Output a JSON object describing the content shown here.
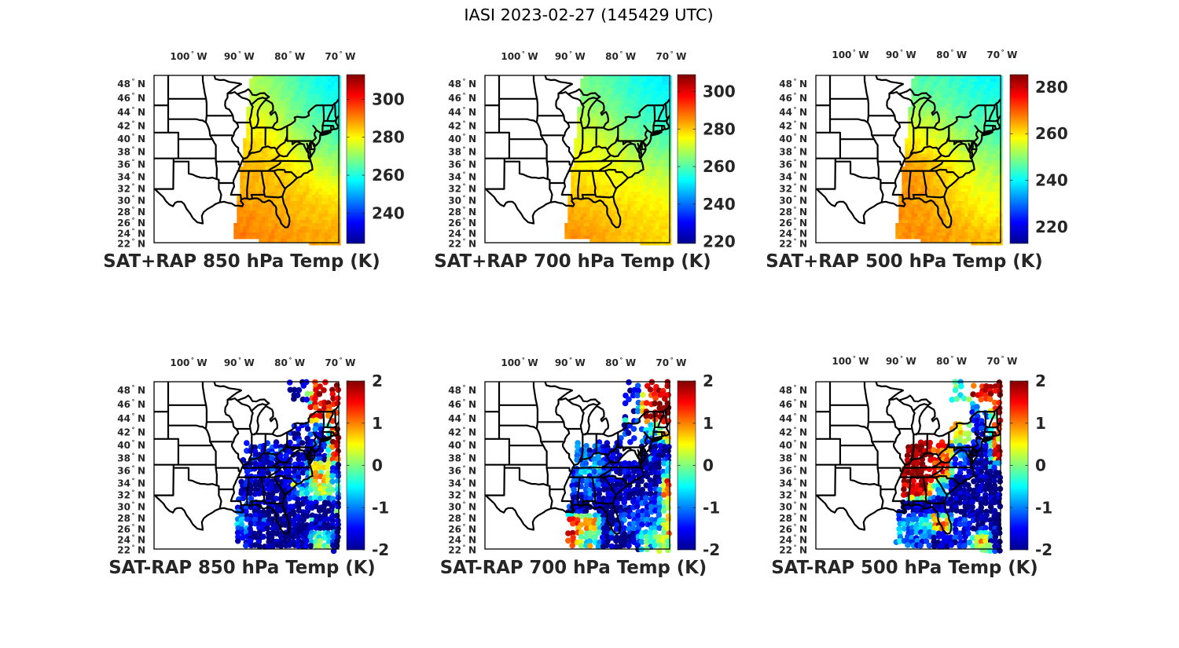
{
  "figure": {
    "title": "IASI 2023-02-27 (145429 UTC)"
  },
  "map_axes": {
    "lon_range": [
      -106.85,
      -70.3
    ],
    "lat_range": [
      22.6,
      49.2
    ],
    "lon_ticks": [
      -100,
      -90,
      -80,
      -70
    ],
    "lon_labels": [
      {
        "num": "100",
        "deg": "°",
        "hemi": "W"
      },
      {
        "num": "90",
        "deg": "°",
        "hemi": "W"
      },
      {
        "num": "80",
        "deg": "°",
        "hemi": "W"
      },
      {
        "num": "70",
        "deg": "°",
        "hemi": "W"
      }
    ],
    "lat_ticks": [
      48,
      46,
      44,
      42,
      40,
      38,
      36,
      34,
      32,
      30,
      28,
      26,
      24,
      22
    ],
    "lat_labels": [
      {
        "num": "48",
        "deg": "°",
        "hemi": "N"
      },
      {
        "num": "46",
        "deg": "°",
        "hemi": "N"
      },
      {
        "num": "44",
        "deg": "°",
        "hemi": "N"
      },
      {
        "num": "42",
        "deg": "°",
        "hemi": "N"
      },
      {
        "num": "40",
        "deg": "°",
        "hemi": "N"
      },
      {
        "num": "38",
        "deg": "°",
        "hemi": "N"
      },
      {
        "num": "36",
        "deg": "°",
        "hemi": "N"
      },
      {
        "num": "34",
        "deg": "°",
        "hemi": "N"
      },
      {
        "num": "32",
        "deg": "°",
        "hemi": "N"
      },
      {
        "num": "30",
        "deg": "°",
        "hemi": "N"
      },
      {
        "num": "28",
        "deg": "°",
        "hemi": "N"
      },
      {
        "num": "26",
        "deg": "°",
        "hemi": "N"
      },
      {
        "num": "24",
        "deg": "°",
        "hemi": "N"
      },
      {
        "num": "22",
        "deg": "°",
        "hemi": "N"
      }
    ]
  },
  "chart_data": [
    {
      "type": "heatmap",
      "title": "SAT+RAP 850 hPa Temp (K)",
      "colormap": "jet",
      "clim": [
        224,
        313
      ],
      "cbar_ticks": [
        240,
        260,
        280,
        300
      ],
      "cbar_tick_labels": [
        "240",
        "260",
        "280",
        "300"
      ],
      "swath_lonlat": [
        [
          -87.6,
          49.2
        ],
        [
          -70.1,
          49.2
        ],
        [
          -70.1,
          21.7
        ],
        [
          -91.1,
          23.0
        ]
      ],
      "grid": {
        "lats": [
          48,
          45,
          42,
          39,
          36,
          33,
          30,
          27,
          24
        ],
        "lons": [
          -90,
          -86,
          -82,
          -78,
          -74,
          -70
        ],
        "values": [
          [
            273,
            272,
            268,
            263,
            259,
            256
          ],
          [
            276,
            275,
            271,
            266,
            262,
            259
          ],
          [
            280,
            279,
            275,
            269,
            265,
            262
          ],
          [
            284,
            283,
            280,
            274,
            269,
            266
          ],
          [
            286,
            285,
            283,
            279,
            274,
            271
          ],
          [
            287,
            286,
            285,
            283,
            279,
            277
          ],
          [
            288,
            287,
            286,
            285,
            283,
            282
          ],
          [
            290,
            289,
            287,
            286,
            285,
            285
          ],
          [
            291,
            290,
            289,
            288,
            287,
            287
          ]
        ]
      }
    },
    {
      "type": "heatmap",
      "title": "SAT+RAP 700 hPa Temp (K)",
      "colormap": "jet",
      "clim": [
        219,
        309
      ],
      "cbar_ticks": [
        220,
        240,
        260,
        280,
        300
      ],
      "cbar_tick_labels": [
        "220",
        "240",
        "260",
        "280",
        "300"
      ],
      "swath_lonlat": [
        [
          -87.6,
          49.2
        ],
        [
          -70.1,
          49.2
        ],
        [
          -70.1,
          21.7
        ],
        [
          -91.1,
          23.0
        ]
      ],
      "grid": {
        "lats": [
          48,
          45,
          42,
          39,
          36,
          33,
          30,
          27,
          24
        ],
        "lons": [
          -90,
          -86,
          -82,
          -78,
          -74,
          -70
        ],
        "values": [
          [
            264,
            263,
            260,
            256,
            253,
            251
          ],
          [
            267,
            266,
            263,
            259,
            256,
            254
          ],
          [
            271,
            270,
            267,
            262,
            259,
            257
          ],
          [
            274,
            273,
            271,
            267,
            263,
            261
          ],
          [
            276,
            275,
            274,
            272,
            268,
            266
          ],
          [
            279,
            278,
            276,
            275,
            272,
            271
          ],
          [
            281,
            280,
            278,
            277,
            276,
            275
          ],
          [
            283,
            282,
            280,
            279,
            278,
            277
          ],
          [
            285,
            284,
            282,
            280,
            279,
            278
          ]
        ]
      }
    },
    {
      "type": "heatmap",
      "title": "SAT+RAP 500 hPa Temp (K)",
      "colormap": "jet",
      "clim": [
        213,
        285.3
      ],
      "cbar_ticks": [
        220,
        240,
        260,
        280
      ],
      "cbar_tick_labels": [
        "220",
        "240",
        "260",
        "280"
      ],
      "swath_lonlat": [
        [
          -87.6,
          49.2
        ],
        [
          -70.1,
          49.2
        ],
        [
          -70.1,
          21.7
        ],
        [
          -91.1,
          23.0
        ]
      ],
      "grid": {
        "lats": [
          48,
          45,
          42,
          39,
          36,
          33,
          30,
          27,
          24
        ],
        "lons": [
          -90,
          -86,
          -82,
          -78,
          -74,
          -70
        ],
        "values": [
          [
            247,
            246,
            245,
            243,
            241,
            240
          ],
          [
            251,
            250,
            248,
            246,
            244,
            243
          ],
          [
            256,
            255,
            253,
            249,
            246,
            245
          ],
          [
            261,
            259,
            257,
            253,
            249,
            247
          ],
          [
            265,
            264,
            261,
            257,
            253,
            251
          ],
          [
            266,
            265,
            262,
            259,
            256,
            254
          ],
          [
            266,
            265,
            263,
            260,
            258,
            257
          ],
          [
            266,
            265,
            264,
            262,
            260,
            259
          ],
          [
            266,
            266,
            265,
            264,
            263,
            262
          ]
        ]
      }
    },
    {
      "type": "scatter",
      "title": "SAT-RAP 850 hPa Temp (K)",
      "colormap": "jet",
      "clim": [
        -2,
        2
      ],
      "cbar_ticks": [
        -2,
        -1,
        0,
        1,
        2
      ],
      "cbar_tick_labels": [
        "-2",
        "-1",
        "0",
        "1",
        "2"
      ],
      "swath_lonlat": [
        [
          -87.6,
          49.2
        ],
        [
          -70.1,
          49.2
        ],
        [
          -70.1,
          21.7
        ],
        [
          -91.1,
          23.0
        ]
      ],
      "grid": {
        "lats": [
          48,
          45,
          42,
          39,
          36,
          33,
          30,
          27,
          24
        ],
        "lons": [
          -90,
          -86,
          -82,
          -78,
          -74,
          -70
        ],
        "values": [
          [
            null,
            null,
            null,
            -1.9,
            1.4,
            1.7
          ],
          [
            null,
            null,
            null,
            null,
            1.3,
            1.6
          ],
          [
            null,
            null,
            null,
            -1.7,
            -1.3,
            1.9
          ],
          [
            -1.7,
            -1.6,
            -1.5,
            -1.8,
            -1.4,
            1.9
          ],
          [
            -1.7,
            -1.8,
            -1.9,
            -1.6,
            0.9,
            -1.4
          ],
          [
            -1.5,
            -1.9,
            -1.9,
            -1.0,
            0.3,
            -0.6
          ],
          [
            -1.4,
            -1.8,
            -1.9,
            -2.0,
            -1.9,
            -1.8
          ],
          [
            -0.9,
            -1.6,
            -2.0,
            -2.0,
            -1.9,
            -1.9
          ],
          [
            -1.6,
            -2.0,
            -2.0,
            -1.9,
            0.0,
            -1.8
          ]
        ]
      }
    },
    {
      "type": "scatter",
      "title": "SAT-RAP 700 hPa Temp (K)",
      "colormap": "jet",
      "clim": [
        -2,
        2
      ],
      "cbar_ticks": [
        -2,
        -1,
        0,
        1,
        2
      ],
      "cbar_tick_labels": [
        "-2",
        "-1",
        "0",
        "1",
        "2"
      ],
      "swath_lonlat": [
        [
          -87.6,
          49.2
        ],
        [
          -70.1,
          49.2
        ],
        [
          -70.1,
          21.7
        ],
        [
          -91.1,
          23.0
        ]
      ],
      "grid": {
        "lats": [
          48,
          45,
          42,
          39,
          36,
          33,
          30,
          27,
          24
        ],
        "lons": [
          -90,
          -86,
          -82,
          -78,
          -74,
          -70
        ],
        "values": [
          [
            null,
            null,
            null,
            -1.7,
            1.5,
            1.8
          ],
          [
            null,
            null,
            null,
            -1.8,
            1.8,
            2.0
          ],
          [
            null,
            null,
            null,
            -1.5,
            -0.6,
            1.3
          ],
          [
            -1.2,
            -1.2,
            -1.6,
            null,
            -1.9,
            -1.7
          ],
          [
            -1.2,
            -0.8,
            -1.6,
            -1.8,
            -2.0,
            -0.5
          ],
          [
            -1.4,
            -1.3,
            -1.9,
            -2.0,
            -1.8,
            1.3
          ],
          [
            -1.8,
            -1.9,
            -2.0,
            -1.6,
            -1.3,
            0.3
          ],
          [
            1.3,
            0.8,
            -1.8,
            -1.3,
            -1.2,
            0.4
          ],
          [
            1.5,
            -0.5,
            -2.0,
            -1.8,
            0.0,
            0.2
          ]
        ]
      }
    },
    {
      "type": "scatter",
      "title": "SAT-RAP 500 hPa Temp (K)",
      "colormap": "jet",
      "clim": [
        -2,
        2
      ],
      "cbar_ticks": [
        -2,
        -1,
        0,
        1,
        2
      ],
      "cbar_tick_labels": [
        "-2",
        "-1",
        "0",
        "1",
        "2"
      ],
      "swath_lonlat": [
        [
          -87.6,
          49.2
        ],
        [
          -70.1,
          49.2
        ],
        [
          -70.1,
          21.7
        ],
        [
          -91.1,
          23.0
        ]
      ],
      "grid": {
        "lats": [
          48,
          45,
          42,
          39,
          36,
          33,
          30,
          27,
          24
        ],
        "lons": [
          -90,
          -86,
          -82,
          -78,
          -74,
          -70
        ],
        "values": [
          [
            null,
            null,
            null,
            -0.5,
            1.5,
            1.8
          ],
          [
            null,
            null,
            null,
            null,
            -1.2,
            1.5
          ],
          [
            null,
            null,
            null,
            0.5,
            -1.5,
            1.6
          ],
          [
            2.0,
            2.0,
            1.2,
            -1.2,
            -1.6,
            1.8
          ],
          [
            2.0,
            2.0,
            1.3,
            -1.6,
            -1.9,
            -1.8
          ],
          [
            1.8,
            1.8,
            -1.0,
            -2.0,
            -2.0,
            -1.9
          ],
          [
            -1.9,
            -1.9,
            -2.0,
            -2.0,
            -2.0,
            -2.0
          ],
          [
            -1.0,
            -0.6,
            1.0,
            -1.5,
            -1.9,
            -2.0
          ],
          [
            -0.8,
            -1.3,
            -1.9,
            -1.6,
            0.2,
            -1.9
          ]
        ]
      }
    }
  ]
}
